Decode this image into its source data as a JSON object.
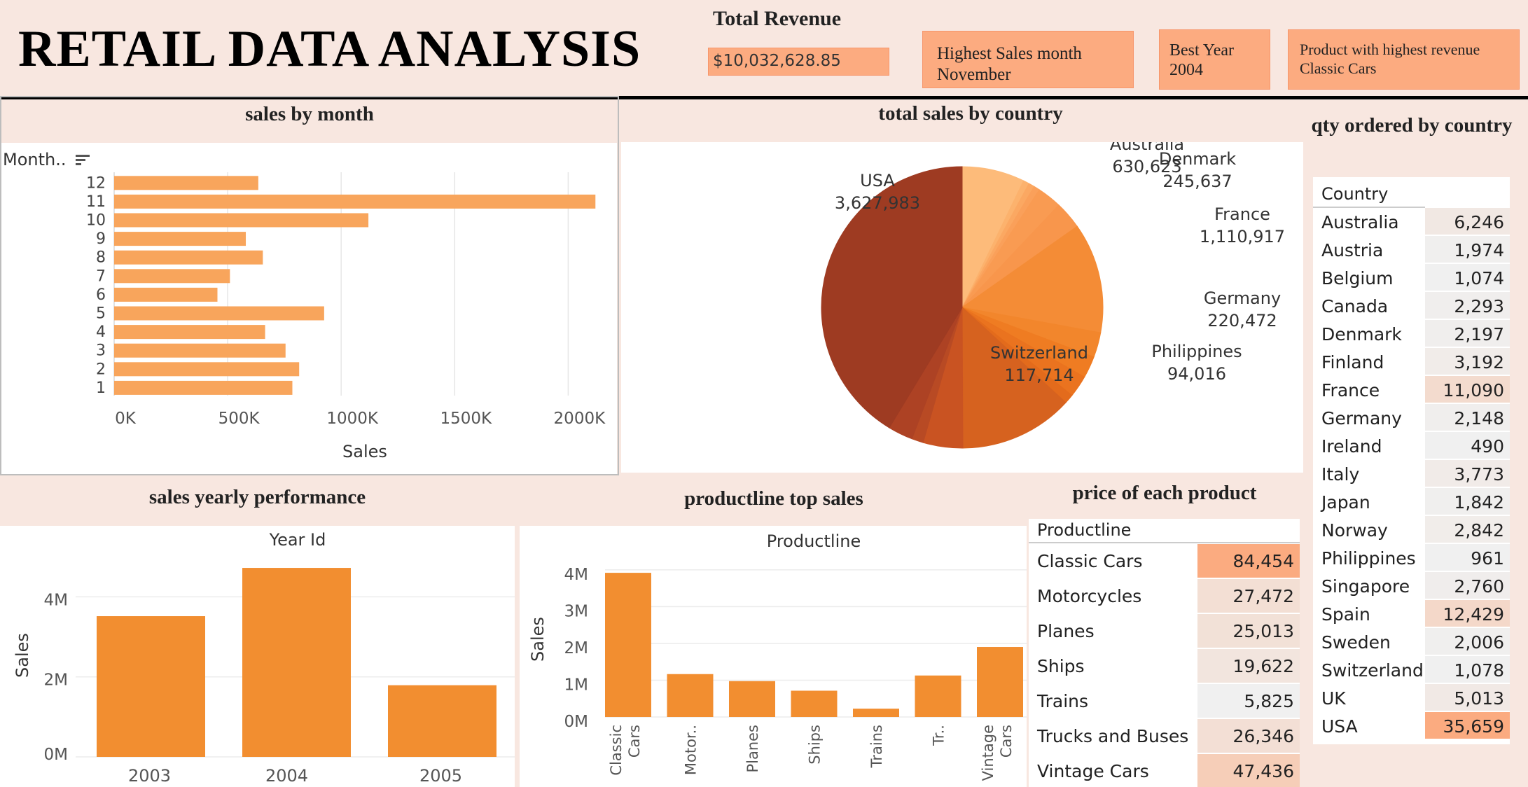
{
  "header": {
    "title": "RETAIL DATA ANALYSIS",
    "revenue_label": "Total Revenue",
    "revenue_value": "$10,032,628.85",
    "month_label": "Highest Sales month",
    "month_value": "November",
    "year_label": "Best Year",
    "year_value": "2004",
    "product_label": "Product with highest revenue",
    "product_value": "Classic Cars"
  },
  "sections": {
    "sales_by_month": "sales by month",
    "sales_by_country": "total sales by country",
    "qty_by_country": "qty ordered by country",
    "yearly": "sales yearly performance",
    "productline": "productline top sales",
    "price": "price of each product"
  },
  "month_sort_label": "Month..",
  "qty_table": {
    "header": "Country",
    "rows": [
      {
        "name": "Australia",
        "value": "6,246",
        "shade": 0.12
      },
      {
        "name": "Austria",
        "value": "1,974",
        "shade": 0.02
      },
      {
        "name": "Belgium",
        "value": "1,074",
        "shade": 0.0
      },
      {
        "name": "Canada",
        "value": "2,293",
        "shade": 0.03
      },
      {
        "name": "Denmark",
        "value": "2,197",
        "shade": 0.03
      },
      {
        "name": "Finland",
        "value": "3,192",
        "shade": 0.06
      },
      {
        "name": "France",
        "value": "11,090",
        "shade": 0.3
      },
      {
        "name": "Germany",
        "value": "2,148",
        "shade": 0.03
      },
      {
        "name": "Ireland",
        "value": "490",
        "shade": 0.0
      },
      {
        "name": "Italy",
        "value": "3,773",
        "shade": 0.07
      },
      {
        "name": "Japan",
        "value": "1,842",
        "shade": 0.02
      },
      {
        "name": "Norway",
        "value": "2,842",
        "shade": 0.05
      },
      {
        "name": "Philippines",
        "value": "961",
        "shade": 0.0
      },
      {
        "name": "Singapore",
        "value": "2,760",
        "shade": 0.04
      },
      {
        "name": "Spain",
        "value": "12,429",
        "shade": 0.35
      },
      {
        "name": "Sweden",
        "value": "2,006",
        "shade": 0.02
      },
      {
        "name": "Switzerland",
        "value": "1,078",
        "shade": 0.0
      },
      {
        "name": "UK",
        "value": "5,013",
        "shade": 0.1
      },
      {
        "name": "USA",
        "value": "35,659",
        "shade": 1.0
      }
    ]
  },
  "price_table": {
    "header": "Productline",
    "rows": [
      {
        "name": "Classic Cars",
        "value": "84,454",
        "shade": 1.0
      },
      {
        "name": "Motorcycles",
        "value": "27,472",
        "shade": 0.25
      },
      {
        "name": "Planes",
        "value": "25,013",
        "shade": 0.22
      },
      {
        "name": "Ships",
        "value": "19,622",
        "shade": 0.16
      },
      {
        "name": "Trains",
        "value": "5,825",
        "shade": 0.0
      },
      {
        "name": "Trucks and Buses",
        "value": "26,346",
        "shade": 0.24
      },
      {
        "name": "Vintage Cars",
        "value": "47,436",
        "shade": 0.5
      }
    ]
  },
  "chart_data": [
    {
      "id": "sales_by_month",
      "type": "bar",
      "orientation": "horizontal",
      "categories": [
        "12",
        "11",
        "10",
        "9",
        "8",
        "7",
        "6",
        "5",
        "4",
        "3",
        "2",
        "1"
      ],
      "values": [
        635000,
        2120000,
        1120000,
        580000,
        655000,
        510000,
        455000,
        925000,
        665000,
        755000,
        815000,
        785000
      ],
      "xlabel": "Sales",
      "xticks": [
        "0K",
        "500K",
        "1000K",
        "1500K",
        "2000K"
      ],
      "xlim": [
        0,
        2150000
      ],
      "color": "#f8a55c"
    },
    {
      "id": "sales_by_country",
      "type": "pie",
      "slices": [
        {
          "label": "Australia",
          "value": 630623,
          "show": "Australia",
          "val_text": "630,623",
          "color": "#fdbb7a"
        },
        {
          "label": "",
          "value": 60000,
          "color": "#fcb26d"
        },
        {
          "label": "",
          "value": 60000,
          "color": "#fba862"
        },
        {
          "label": "",
          "value": 60000,
          "color": "#faa05a"
        },
        {
          "label": "Denmark",
          "value": 245637,
          "show": "Denmark",
          "val_text": "245,637",
          "color": "#f99b52"
        },
        {
          "label": "",
          "value": 280000,
          "color": "#f8964c"
        },
        {
          "label": "France",
          "value": 1110917,
          "show": "France",
          "val_text": "1,110,917",
          "color": "#f48c36"
        },
        {
          "label": "",
          "value": 250000,
          "color": "#f2862c"
        },
        {
          "label": "Germany",
          "value": 220472,
          "show": "Germany",
          "val_text": "220,472",
          "color": "#ef7c22"
        },
        {
          "label": "",
          "value": 220000,
          "color": "#ea731f"
        },
        {
          "label": "Philippines",
          "value": 94016,
          "show": "Philippines",
          "val_text": "94,016",
          "color": "#e36b1c"
        },
        {
          "label": "",
          "value": 1150000,
          "color": "#d6621f"
        },
        {
          "label": "",
          "value": 400000,
          "color": "#c95322"
        },
        {
          "label": "Switzerland",
          "value": 117714,
          "show": "Switzerland",
          "val_text": "117,714",
          "color": "#b84a24"
        },
        {
          "label": "",
          "value": 250000,
          "color": "#ad4224"
        },
        {
          "label": "USA",
          "value": 3627983,
          "show": "USA",
          "val_text": "3,627,983",
          "color": "#9e3b22"
        }
      ]
    },
    {
      "id": "yearly",
      "type": "bar",
      "title": "Year Id",
      "categories": [
        "2003",
        "2004",
        "2005"
      ],
      "values": [
        3516979,
        4724162,
        1791486
      ],
      "ylabel": "Sales",
      "yticks": [
        "0M",
        "2M",
        "4M"
      ],
      "ylim": [
        0,
        4900000
      ],
      "color": "#f28e30"
    },
    {
      "id": "productline",
      "type": "bar",
      "title": "Productline",
      "categories": [
        "Classic Cars",
        "Motor..",
        "Planes",
        "Ships",
        "Trains",
        "Tr..",
        "Vintage Cars"
      ],
      "values": [
        3919615,
        1166388,
        975003,
        714437,
        226243,
        1127789,
        1903151
      ],
      "ylabel": "Sales",
      "yticks": [
        "0M",
        "1M",
        "2M",
        "3M",
        "4M"
      ],
      "ylim": [
        0,
        4150000
      ],
      "color": "#f28e30"
    }
  ]
}
